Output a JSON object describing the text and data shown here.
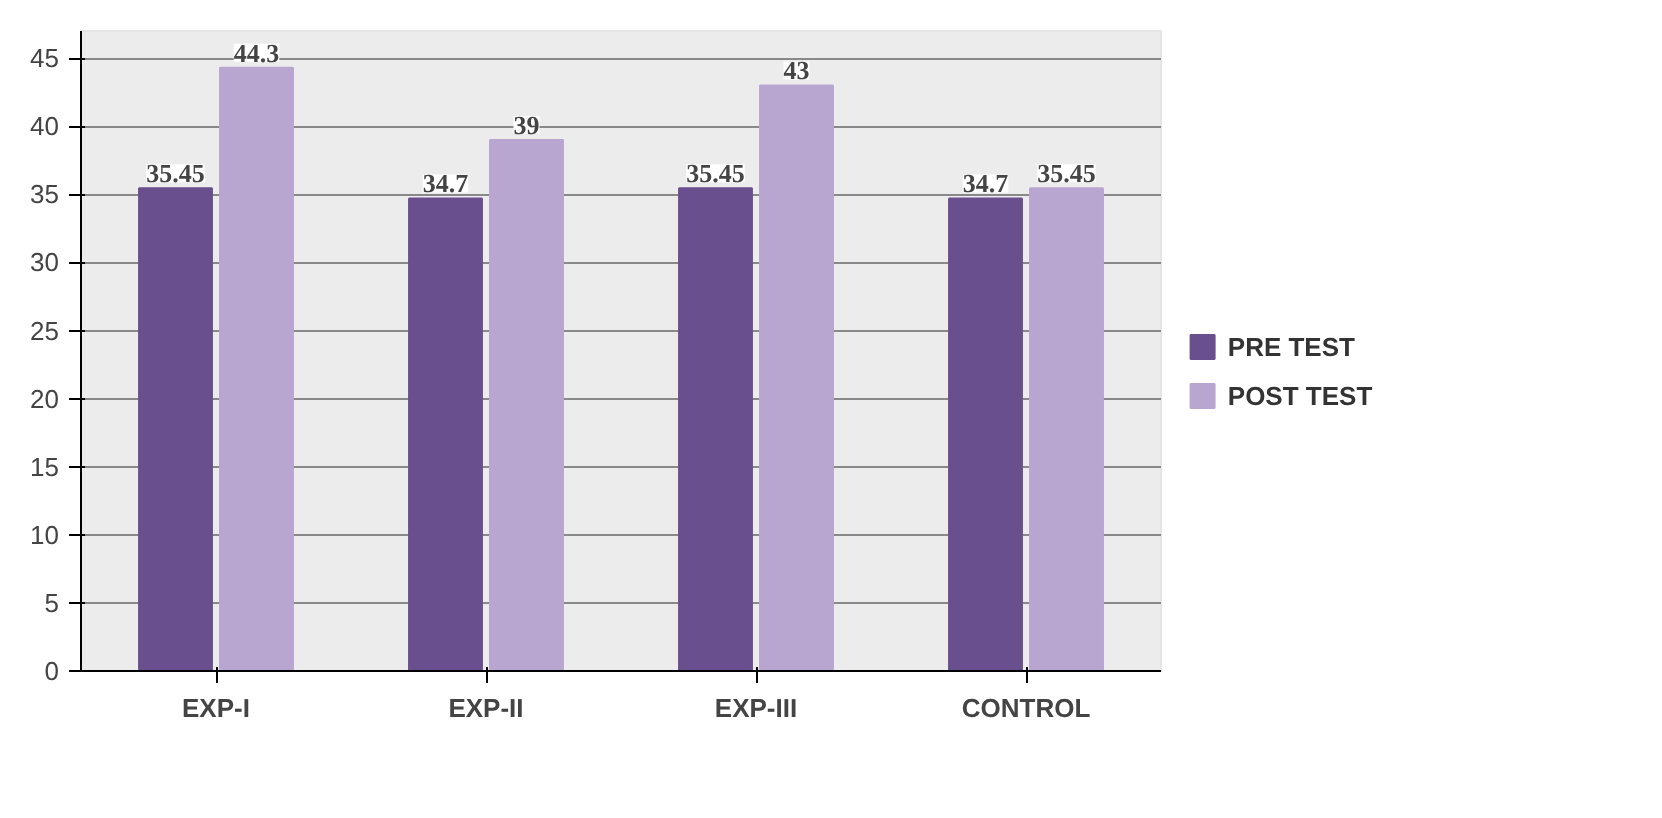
{
  "chart_data": {
    "type": "bar",
    "categories": [
      "EXP-I",
      "EXP-II",
      "EXP-III",
      "CONTROL"
    ],
    "series": [
      {
        "name": "PRE TEST",
        "color": "#6a4f8e",
        "values": [
          35.45,
          34.7,
          35.45,
          34.7
        ]
      },
      {
        "name": "POST TEST",
        "color": "#b8a5d0",
        "values": [
          44.3,
          39,
          43,
          35.45
        ]
      }
    ],
    "ylim": [
      0,
      47
    ],
    "yticks": [
      0,
      5,
      10,
      15,
      20,
      25,
      30,
      35,
      40,
      45
    ],
    "grid": "y",
    "legend": "right",
    "data_labels": true
  }
}
